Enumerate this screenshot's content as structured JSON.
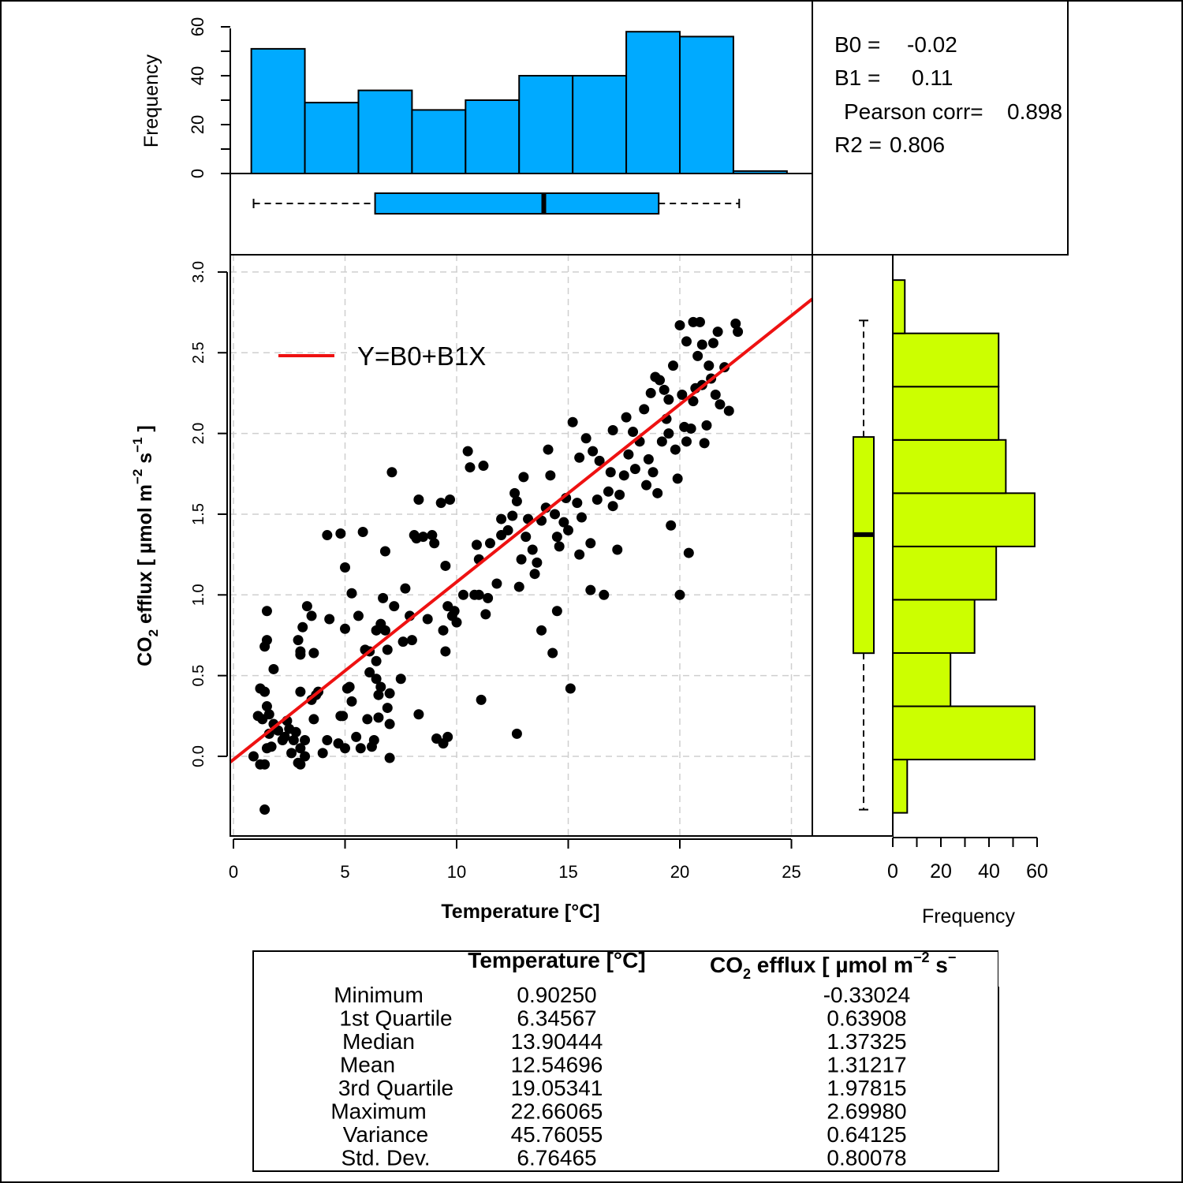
{
  "chart_data": [
    {
      "type": "scatter",
      "xlabel": "Temperature [°C]",
      "ylabel": "CO2 efflux [ µmol m-2 s-1 ]",
      "ylabel_parts": {
        "pre": "CO",
        "sub": "2",
        "mid": " efflux [ µmol m",
        "sup1": "−2",
        "mid2": " s",
        "sup2": "−1",
        "post": " ]"
      },
      "xlim": [
        -0.3,
        25.8
      ],
      "ylim": [
        -0.5,
        3.1
      ],
      "x_ticks": [
        "0",
        "5",
        "10",
        "15",
        "20",
        "25"
      ],
      "x_tick_values": [
        0,
        5,
        10,
        15,
        20,
        25
      ],
      "y_ticks": [
        "0.0",
        "0.5",
        "1.0",
        "1.5",
        "2.0",
        "2.5",
        "3.0"
      ],
      "y_tick_values": [
        0,
        0.5,
        1,
        1.5,
        2,
        2.5,
        3
      ],
      "grid": true,
      "regression": {
        "b0": -0.02,
        "b1": 0.11
      },
      "legend": {
        "label": "Y=B0+B1X",
        "color": "#ee1111",
        "position": "top-left"
      },
      "series": [
        {
          "points": [
            [
              0.9,
              0.0
            ],
            [
              1.1,
              0.25
            ],
            [
              1.2,
              0.42
            ],
            [
              1.4,
              0.4
            ],
            [
              1.3,
              0.23
            ],
            [
              1.5,
              0.31
            ],
            [
              1.6,
              0.26
            ],
            [
              1.2,
              -0.05
            ],
            [
              1.4,
              -0.05
            ],
            [
              1.5,
              0.05
            ],
            [
              1.7,
              0.06
            ],
            [
              1.6,
              0.14
            ],
            [
              1.8,
              0.2
            ],
            [
              1.5,
              0.72
            ],
            [
              1.4,
              0.68
            ],
            [
              1.5,
              0.9
            ],
            [
              1.8,
              0.54
            ],
            [
              1.4,
              -0.33
            ],
            [
              2.0,
              0.16
            ],
            [
              2.2,
              0.1
            ],
            [
              2.3,
              0.12
            ],
            [
              2.4,
              0.22
            ],
            [
              2.5,
              0.17
            ],
            [
              2.6,
              0.02
            ],
            [
              2.7,
              0.1
            ],
            [
              2.8,
              0.15
            ],
            [
              2.9,
              0.72
            ],
            [
              3.0,
              0.65
            ],
            [
              3.0,
              0.63
            ],
            [
              3.1,
              0.8
            ],
            [
              3.0,
              0.4
            ],
            [
              3.2,
              0.0
            ],
            [
              2.9,
              -0.04
            ],
            [
              3.0,
              -0.05
            ],
            [
              3.0,
              0.05
            ],
            [
              3.2,
              0.1
            ],
            [
              3.3,
              0.93
            ],
            [
              3.5,
              0.35
            ],
            [
              3.5,
              0.87
            ],
            [
              3.6,
              0.64
            ],
            [
              3.7,
              0.38
            ],
            [
              3.6,
              0.23
            ],
            [
              4.0,
              0.02
            ],
            [
              4.2,
              0.1
            ],
            [
              4.3,
              0.85
            ],
            [
              4.2,
              1.37
            ],
            [
              4.8,
              1.38
            ],
            [
              4.8,
              0.25
            ],
            [
              4.9,
              0.25
            ],
            [
              5.0,
              0.79
            ],
            [
              5.0,
              1.17
            ],
            [
              5.0,
              0.05
            ],
            [
              5.1,
              0.42
            ],
            [
              5.2,
              0.43
            ],
            [
              5.3,
              0.34
            ],
            [
              5.3,
              1.01
            ],
            [
              5.5,
              0.12
            ],
            [
              5.7,
              0.05
            ],
            [
              5.8,
              1.39
            ],
            [
              5.9,
              0.66
            ],
            [
              6.0,
              0.23
            ],
            [
              6.1,
              0.52
            ],
            [
              6.1,
              0.65
            ],
            [
              6.2,
              0.06
            ],
            [
              6.3,
              0.1
            ],
            [
              6.4,
              0.78
            ],
            [
              6.4,
              0.48
            ],
            [
              6.5,
              0.38
            ],
            [
              6.5,
              0.24
            ],
            [
              6.6,
              0.82
            ],
            [
              6.6,
              0.43
            ],
            [
              6.7,
              0.98
            ],
            [
              6.8,
              1.27
            ],
            [
              6.8,
              0.78
            ],
            [
              6.9,
              0.66
            ],
            [
              6.9,
              0.3
            ],
            [
              7.0,
              0.2
            ],
            [
              7.0,
              0.39
            ],
            [
              7.0,
              -0.01
            ],
            [
              7.1,
              1.76
            ],
            [
              7.2,
              0.93
            ],
            [
              7.5,
              0.48
            ],
            [
              7.6,
              0.71
            ],
            [
              7.7,
              1.04
            ],
            [
              7.9,
              0.87
            ],
            [
              8.1,
              1.37
            ],
            [
              8.2,
              1.35
            ],
            [
              8.3,
              1.59
            ],
            [
              8.3,
              0.26
            ],
            [
              8.5,
              1.36
            ],
            [
              8.7,
              0.85
            ],
            [
              8.9,
              1.37
            ],
            [
              9.1,
              0.11
            ],
            [
              9.3,
              1.57
            ],
            [
              9.4,
              0.08
            ],
            [
              9.4,
              0.78
            ],
            [
              9.5,
              0.65
            ],
            [
              9.6,
              0.93
            ],
            [
              9.7,
              1.59
            ],
            [
              9.5,
              1.18
            ],
            [
              9.8,
              0.87
            ],
            [
              9.9,
              0.9
            ],
            [
              9.6,
              0.12
            ],
            [
              10.0,
              0.83
            ],
            [
              10.3,
              1.0
            ],
            [
              10.5,
              1.89
            ],
            [
              10.6,
              1.79
            ],
            [
              10.8,
              1.0
            ],
            [
              10.9,
              1.31
            ],
            [
              11.0,
              1.22
            ],
            [
              11.1,
              0.35
            ],
            [
              11.2,
              1.8
            ],
            [
              11.3,
              0.88
            ],
            [
              11.4,
              0.98
            ],
            [
              11.5,
              1.32
            ],
            [
              11.8,
              1.07
            ],
            [
              12.0,
              1.47
            ],
            [
              12.3,
              1.4
            ],
            [
              12.5,
              1.49
            ],
            [
              12.6,
              1.63
            ],
            [
              12.7,
              1.58
            ],
            [
              12.7,
              0.14
            ],
            [
              12.8,
              1.05
            ],
            [
              12.9,
              1.22
            ],
            [
              13.0,
              1.73
            ],
            [
              13.1,
              1.36
            ],
            [
              13.2,
              1.47
            ],
            [
              13.4,
              1.28
            ],
            [
              13.5,
              1.13
            ],
            [
              13.6,
              1.2
            ],
            [
              13.8,
              1.46
            ],
            [
              14.0,
              1.54
            ],
            [
              14.1,
              1.9
            ],
            [
              14.2,
              1.74
            ],
            [
              14.3,
              0.64
            ],
            [
              14.4,
              1.5
            ],
            [
              14.5,
              1.36
            ],
            [
              14.6,
              1.3
            ],
            [
              14.8,
              1.45
            ],
            [
              14.9,
              1.6
            ],
            [
              15.0,
              1.4
            ],
            [
              15.1,
              0.42
            ],
            [
              15.2,
              2.07
            ],
            [
              15.4,
              1.57
            ],
            [
              15.5,
              1.85
            ],
            [
              15.6,
              1.48
            ],
            [
              15.8,
              1.97
            ],
            [
              16.0,
              1.32
            ],
            [
              16.1,
              1.89
            ],
            [
              16.3,
              1.59
            ],
            [
              16.4,
              1.83
            ],
            [
              16.6,
              1.0
            ],
            [
              16.8,
              1.64
            ],
            [
              16.9,
              1.76
            ],
            [
              17.0,
              2.02
            ],
            [
              17.2,
              1.28
            ],
            [
              17.3,
              1.62
            ],
            [
              17.5,
              1.74
            ],
            [
              17.6,
              2.1
            ],
            [
              17.7,
              1.87
            ],
            [
              17.9,
              2.01
            ],
            [
              18.0,
              1.78
            ],
            [
              18.2,
              1.95
            ],
            [
              18.4,
              2.15
            ],
            [
              18.5,
              1.68
            ],
            [
              18.6,
              1.84
            ],
            [
              18.8,
              1.76
            ],
            [
              18.9,
              2.35
            ],
            [
              19.0,
              1.63
            ],
            [
              19.1,
              2.33
            ],
            [
              19.2,
              1.95
            ],
            [
              19.3,
              2.27
            ],
            [
              19.4,
              2.09
            ],
            [
              19.5,
              2.21
            ],
            [
              19.6,
              1.43
            ],
            [
              19.7,
              2.42
            ],
            [
              19.8,
              1.9
            ],
            [
              19.9,
              1.72
            ],
            [
              20.0,
              2.67
            ],
            [
              20.0,
              1.0
            ],
            [
              20.1,
              2.24
            ],
            [
              20.2,
              2.04
            ],
            [
              20.3,
              2.57
            ],
            [
              20.4,
              1.26
            ],
            [
              20.5,
              2.03
            ],
            [
              20.6,
              2.69
            ],
            [
              20.7,
              2.28
            ],
            [
              20.8,
              2.48
            ],
            [
              20.9,
              2.69
            ],
            [
              21.0,
              2.3
            ],
            [
              21.1,
              1.94
            ],
            [
              21.2,
              2.05
            ],
            [
              21.3,
              2.42
            ],
            [
              21.4,
              2.34
            ],
            [
              21.5,
              2.56
            ],
            [
              21.6,
              2.24
            ],
            [
              21.7,
              2.63
            ],
            [
              21.8,
              2.18
            ],
            [
              22.0,
              2.41
            ],
            [
              22.2,
              2.14
            ],
            [
              22.5,
              2.68
            ],
            [
              22.6,
              2.63
            ],
            [
              20.3,
              1.95
            ],
            [
              20.6,
              2.2
            ],
            [
              21.0,
              2.55
            ],
            [
              19.5,
              2.0
            ],
            [
              18.7,
              2.25
            ],
            [
              17.0,
              1.55
            ],
            [
              16.0,
              1.03
            ],
            [
              15.5,
              1.25
            ],
            [
              14.5,
              0.9
            ],
            [
              13.8,
              0.78
            ],
            [
              12.0,
              1.37
            ],
            [
              11.0,
              1.0
            ],
            [
              9.0,
              1.32
            ],
            [
              8.0,
              0.72
            ],
            [
              6.4,
              0.59
            ],
            [
              5.6,
              0.87
            ],
            [
              4.7,
              0.08
            ],
            [
              3.8,
              0.4
            ]
          ]
        }
      ]
    },
    {
      "type": "bar",
      "title": "",
      "ylabel": "Frequency",
      "ylim": [
        0,
        60
      ],
      "y_ticks": [
        "0",
        "20",
        "40",
        "60"
      ],
      "y_tick_values": [
        0,
        20,
        40,
        60
      ],
      "bin_edges": [
        0.8,
        3.2,
        5.6,
        8.0,
        10.4,
        12.8,
        15.2,
        17.6,
        20.0,
        22.4,
        24.8
      ],
      "values": [
        51,
        29,
        34,
        26,
        30,
        40,
        40,
        58,
        56,
        1
      ],
      "color": "#00aaff"
    },
    {
      "type": "bar",
      "orientation": "horizontal",
      "xlabel": "Frequency",
      "xlim": [
        0,
        60
      ],
      "x_ticks": [
        "0",
        "20",
        "40",
        "60"
      ],
      "x_tick_values": [
        0,
        20,
        40,
        60
      ],
      "bin_edges": [
        -0.35,
        -0.02,
        0.31,
        0.64,
        0.97,
        1.3,
        1.63,
        1.96,
        2.29,
        2.62,
        2.95
      ],
      "values": [
        6,
        59,
        24,
        34,
        43,
        59,
        47,
        44,
        44,
        5
      ],
      "color": "#ccff00"
    },
    {
      "type": "box",
      "orientation": "horizontal",
      "variable": "Temperature",
      "min": 0.9025,
      "q1": 6.34567,
      "median": 13.90444,
      "q3": 19.05341,
      "max": 22.66065,
      "color": "#00aaff"
    },
    {
      "type": "box",
      "orientation": "vertical",
      "variable": "CO2 efflux",
      "min": -0.33024,
      "q1": 0.63908,
      "median": 1.37325,
      "q3": 1.97815,
      "max": 2.6998,
      "color": "#ccff00"
    }
  ],
  "stats": {
    "b0_label": "B0 =",
    "b0_value": "-0.02",
    "b1_label": "B1 =",
    "b1_value": "0.11",
    "corr_label": "Pearson corr=",
    "corr_value": "0.898",
    "r2_label": "R2 =",
    "r2_value": "0.806"
  },
  "summary_table": {
    "col1_header": "Temperature [°C]",
    "col2_header": {
      "pre": "CO",
      "sub": "2",
      "mid": " efflux [ µmol m",
      "sup1": "−2",
      "mid2": " s",
      "sup2": "−"
    },
    "rows": [
      {
        "label": "Minimum",
        "temp": "0.90250",
        "co2": "-0.33024"
      },
      {
        "label": "1st Quartile",
        "temp": "6.34567",
        "co2": "0.63908"
      },
      {
        "label": "Median",
        "temp": "13.90444",
        "co2": "1.37325"
      },
      {
        "label": "Mean",
        "temp": "12.54696",
        "co2": "1.31217"
      },
      {
        "label": "3rd Quartile",
        "temp": "19.05341",
        "co2": "1.97815"
      },
      {
        "label": "Maximum",
        "temp": "22.66065",
        "co2": "2.69980"
      },
      {
        "label": "Variance",
        "temp": "45.76055",
        "co2": "0.64125"
      },
      {
        "label": "Std. Dev.",
        "temp": "6.76465",
        "co2": "0.80078"
      }
    ]
  }
}
